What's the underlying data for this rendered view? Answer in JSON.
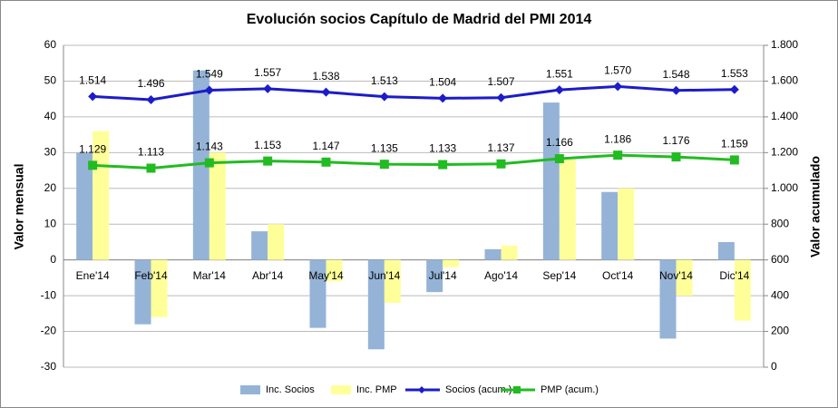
{
  "chart_data": {
    "type": "bar",
    "title": "Evolución socios Capítulo de Madrid del PMI 2014",
    "ylabel": "Valor mensual",
    "y2label": "Valor acumulado",
    "categories": [
      "Ene'14",
      "Feb'14",
      "Mar'14",
      "Abr'14",
      "May'14",
      "Jun'14",
      "Jul'14",
      "Ago'14",
      "Sep'14",
      "Oct'14",
      "Nov'14",
      "Dic'14"
    ],
    "series": [
      {
        "name": "Inc. Socios",
        "type": "bar",
        "color": "#95b3d7",
        "values": [
          30,
          -18,
          53,
          8,
          -19,
          -25,
          -9,
          3,
          44,
          19,
          -22,
          5
        ]
      },
      {
        "name": "Inc. PMP",
        "type": "bar",
        "color": "#ffff99",
        "values": [
          36,
          -16,
          30,
          10,
          -6,
          -12,
          -2,
          4,
          28,
          20,
          -10,
          -17
        ]
      },
      {
        "name": "Socios (acum.)",
        "type": "line",
        "axis": "y2",
        "color": "#1c1cc8",
        "marker": "diamond",
        "values": [
          1514,
          1496,
          1549,
          1557,
          1538,
          1513,
          1504,
          1507,
          1551,
          1570,
          1548,
          1553
        ],
        "value_labels": [
          "1.514",
          "1.496",
          "1.549",
          "1.557",
          "1.538",
          "1.513",
          "1.504",
          "1.507",
          "1.551",
          "1.570",
          "1.548",
          "1.553"
        ]
      },
      {
        "name": "PMP (acum.)",
        "type": "line",
        "axis": "y2",
        "color": "#22bb22",
        "marker": "square",
        "values": [
          1129,
          1113,
          1143,
          1153,
          1147,
          1135,
          1133,
          1137,
          1166,
          1186,
          1176,
          1159
        ],
        "value_labels": [
          "1.129",
          "1.113",
          "1.143",
          "1.153",
          "1.147",
          "1.135",
          "1.133",
          "1.137",
          "1.166",
          "1.186",
          "1.176",
          "1.159"
        ]
      }
    ],
    "ylim": [
      -30,
      60
    ],
    "yticks": [
      -30,
      -20,
      -10,
      0,
      10,
      20,
      30,
      40,
      50,
      60
    ],
    "y2lim": [
      0,
      1800
    ],
    "y2ticks": [
      0,
      200,
      400,
      600,
      800,
      {
        "value": 1000,
        "label": "1.000"
      },
      {
        "value": 1200,
        "label": "1.200"
      },
      {
        "value": 1400,
        "label": "1.400"
      },
      {
        "value": 1600,
        "label": "1.600"
      },
      {
        "value": 1800,
        "label": "1.800"
      }
    ],
    "grid": true,
    "legend": "bottom"
  }
}
